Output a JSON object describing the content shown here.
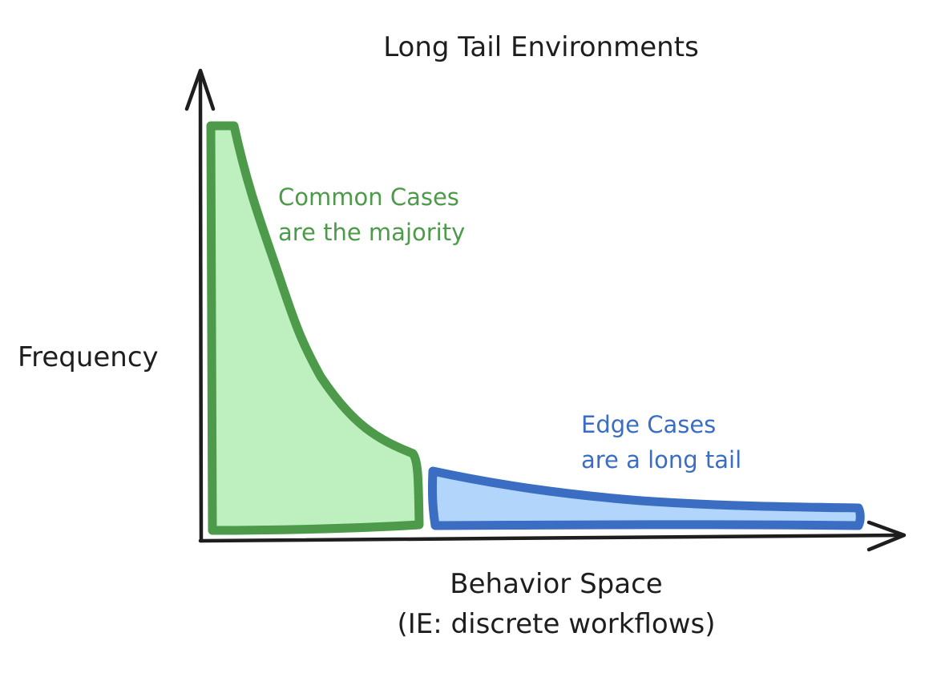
{
  "diagram": {
    "title": "Long Tail Environments",
    "y_axis_label": "Frequency",
    "x_axis_label_line1": "Behavior Space",
    "x_axis_label_line2": "(IE: discrete workflows)",
    "common_cases": {
      "line1": "Common Cases",
      "line2": "are the majority",
      "stroke_color": "#4c9a4a",
      "fill_color": "#bdf0be"
    },
    "edge_cases": {
      "line1": "Edge Cases",
      "line2": "are a long tail",
      "stroke_color": "#3b6ec2",
      "fill_color": "#b2d6fb"
    },
    "axis_color": "#1e1e1e"
  }
}
